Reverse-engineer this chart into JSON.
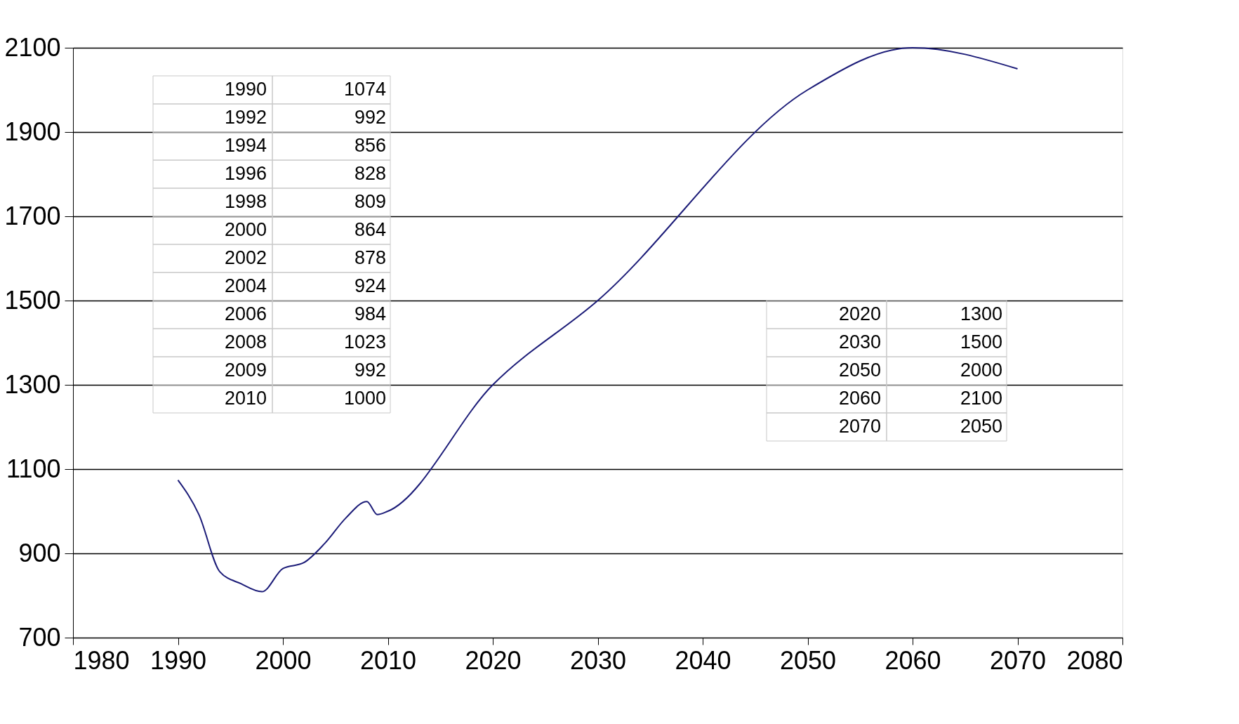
{
  "chart_data": {
    "type": "line",
    "grid": "y",
    "marker": "none",
    "annotations": [
      "1990",
      "1074",
      "1992",
      "992",
      "1994",
      "856",
      "1996",
      "828",
      "1998",
      "809",
      "2000",
      "864",
      "2002",
      "878",
      "2004",
      "924",
      "2006",
      "984",
      "2008",
      "1023",
      "2009",
      "992",
      "2010",
      "1000",
      "2020",
      "1300",
      "2030",
      "1500",
      "2050",
      "2000",
      "2060",
      "2100",
      "2070",
      "2050"
    ],
    "line_style": "solid",
    "xlim": [
      1980,
      2080
    ],
    "xticks": [
      1980,
      1990,
      2000,
      2010,
      2020,
      2030,
      2040,
      2050,
      2060,
      2070,
      2080
    ],
    "ylim": [
      700,
      2100
    ],
    "yticks": [
      700,
      900,
      1100,
      1300,
      1500,
      1700,
      1900,
      2100
    ],
    "series": [
      {
        "color": "#1c1c78",
        "x": [
          1990,
          1992,
          1994,
          1996,
          1998,
          2000,
          2002,
          2004,
          2006,
          2008,
          2009,
          2010,
          2020,
          2030,
          2050,
          2060,
          2070
        ],
        "values": [
          1074,
          992,
          856,
          828,
          809,
          864,
          878,
          924,
          984,
          1023,
          992,
          1000,
          1300,
          1500,
          2000,
          2100,
          2050
        ]
      }
    ]
  }
}
